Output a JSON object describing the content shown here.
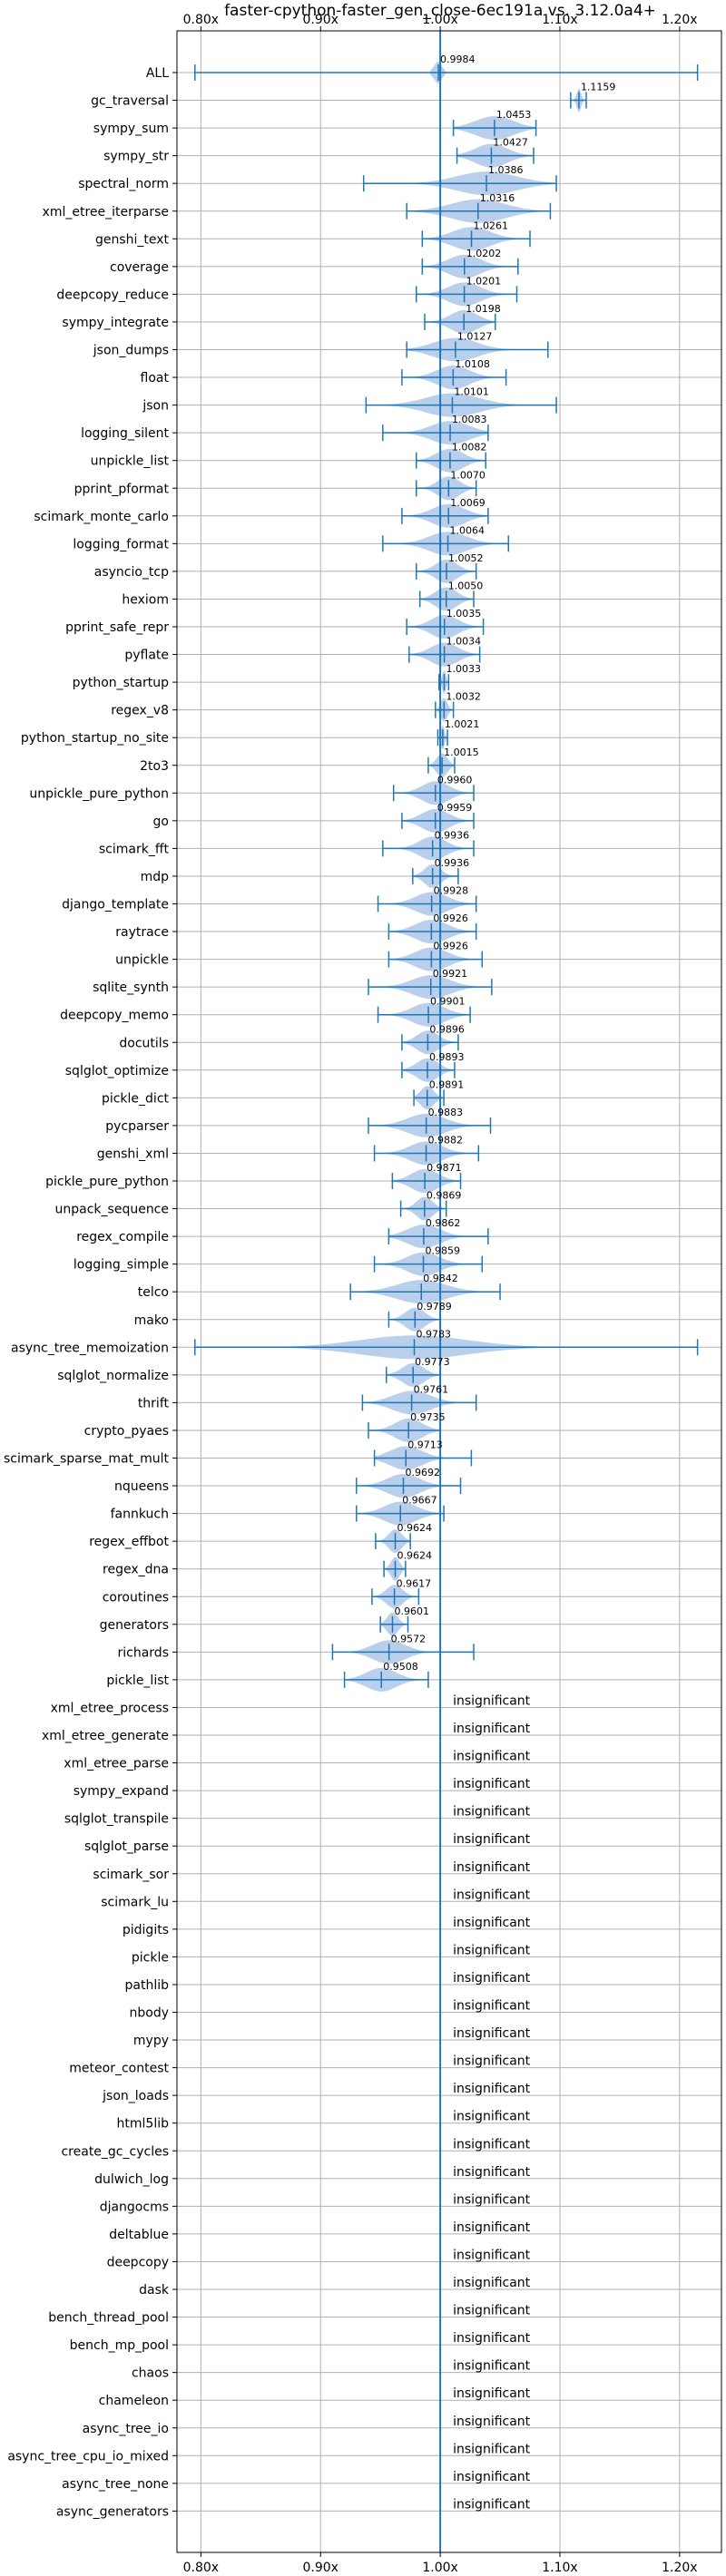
{
  "chart_data": {
    "type": "violin",
    "title": "faster-cpython-faster_gen_close-6ec191a vs. 3.12.0a4+",
    "xlabel": "",
    "ylabel": "",
    "xlim": [
      0.78,
      1.235
    ],
    "xticks": [
      0.8,
      0.9,
      1.0,
      1.1,
      1.2
    ],
    "xtick_labels": [
      "0.80x",
      "0.90x",
      "1.00x",
      "1.10x",
      "1.20x"
    ],
    "reference_line": 1.0,
    "grid": true,
    "insignificant_label": "insignificant",
    "colors": {
      "violin": "#aec7e8",
      "line": "#1f77b4",
      "grid": "#b0b0b0"
    },
    "significant": [
      {
        "name": "ALL",
        "value": 0.9984,
        "label": "0.9984",
        "min": 0.795,
        "max": 1.215,
        "spread": 0.006
      },
      {
        "name": "gc_traversal",
        "value": 1.1159,
        "label": "1.1159",
        "min": 1.109,
        "max": 1.122,
        "spread": 0.004
      },
      {
        "name": "sympy_sum",
        "value": 1.0453,
        "label": "1.0453",
        "min": 1.011,
        "max": 1.08,
        "spread": 0.035
      },
      {
        "name": "sympy_str",
        "value": 1.0427,
        "label": "1.0427",
        "min": 1.014,
        "max": 1.078,
        "spread": 0.03
      },
      {
        "name": "spectral_norm",
        "value": 1.0386,
        "label": "1.0386",
        "min": 0.936,
        "max": 1.097,
        "spread": 0.055
      },
      {
        "name": "xml_etree_iterparse",
        "value": 1.0316,
        "label": "1.0316",
        "min": 0.972,
        "max": 1.092,
        "spread": 0.05
      },
      {
        "name": "genshi_text",
        "value": 1.0261,
        "label": "1.0261",
        "min": 0.985,
        "max": 1.075,
        "spread": 0.035
      },
      {
        "name": "coverage",
        "value": 1.0202,
        "label": "1.0202",
        "min": 0.985,
        "max": 1.065,
        "spread": 0.03
      },
      {
        "name": "deepcopy_reduce",
        "value": 1.0201,
        "label": "1.0201",
        "min": 0.98,
        "max": 1.064,
        "spread": 0.03
      },
      {
        "name": "sympy_integrate",
        "value": 1.0198,
        "label": "1.0198",
        "min": 0.987,
        "max": 1.046,
        "spread": 0.025
      },
      {
        "name": "json_dumps",
        "value": 1.0127,
        "label": "1.0127",
        "min": 0.972,
        "max": 1.09,
        "spread": 0.04
      },
      {
        "name": "float",
        "value": 1.0108,
        "label": "1.0108",
        "min": 0.968,
        "max": 1.055,
        "spread": 0.03
      },
      {
        "name": "json",
        "value": 1.0101,
        "label": "1.0101",
        "min": 0.938,
        "max": 1.097,
        "spread": 0.05
      },
      {
        "name": "logging_silent",
        "value": 1.0083,
        "label": "1.0083",
        "min": 0.952,
        "max": 1.04,
        "spread": 0.035
      },
      {
        "name": "unpickle_list",
        "value": 1.0082,
        "label": "1.0082",
        "min": 0.98,
        "max": 1.038,
        "spread": 0.025
      },
      {
        "name": "pprint_pformat",
        "value": 1.007,
        "label": "1.0070",
        "min": 0.98,
        "max": 1.03,
        "spread": 0.02
      },
      {
        "name": "scimark_monte_carlo",
        "value": 1.0069,
        "label": "1.0069",
        "min": 0.968,
        "max": 1.04,
        "spread": 0.03
      },
      {
        "name": "logging_format",
        "value": 1.0064,
        "label": "1.0064",
        "min": 0.952,
        "max": 1.057,
        "spread": 0.035
      },
      {
        "name": "asyncio_tcp",
        "value": 1.0052,
        "label": "1.0052",
        "min": 0.98,
        "max": 1.03,
        "spread": 0.02
      },
      {
        "name": "hexiom",
        "value": 1.005,
        "label": "1.0050",
        "min": 0.983,
        "max": 1.028,
        "spread": 0.02
      },
      {
        "name": "pprint_safe_repr",
        "value": 1.0035,
        "label": "1.0035",
        "min": 0.972,
        "max": 1.036,
        "spread": 0.025
      },
      {
        "name": "pyflate",
        "value": 1.0034,
        "label": "1.0034",
        "min": 0.974,
        "max": 1.033,
        "spread": 0.025
      },
      {
        "name": "python_startup",
        "value": 1.0033,
        "label": "1.0033",
        "min": 0.999,
        "max": 1.007,
        "spread": 0.003
      },
      {
        "name": "regex_v8",
        "value": 1.0032,
        "label": "1.0032",
        "min": 0.996,
        "max": 1.011,
        "spread": 0.006
      },
      {
        "name": "python_startup_no_site",
        "value": 1.0021,
        "label": "1.0021",
        "min": 0.998,
        "max": 1.006,
        "spread": 0.003
      },
      {
        "name": "2to3",
        "value": 1.0015,
        "label": "1.0015",
        "min": 0.99,
        "max": 1.012,
        "spread": 0.01
      },
      {
        "name": "unpickle_pure_python",
        "value": 0.996,
        "label": "0.9960",
        "min": 0.961,
        "max": 1.028,
        "spread": 0.025
      },
      {
        "name": "go",
        "value": 0.9959,
        "label": "0.9959",
        "min": 0.968,
        "max": 1.028,
        "spread": 0.025
      },
      {
        "name": "scimark_fft",
        "value": 0.9936,
        "label": "0.9936",
        "min": 0.952,
        "max": 1.028,
        "spread": 0.025
      },
      {
        "name": "mdp",
        "value": 0.9936,
        "label": "0.9936",
        "min": 0.977,
        "max": 1.015,
        "spread": 0.015
      },
      {
        "name": "django_template",
        "value": 0.9928,
        "label": "0.9928",
        "min": 0.948,
        "max": 1.03,
        "spread": 0.03
      },
      {
        "name": "raytrace",
        "value": 0.9926,
        "label": "0.9926",
        "min": 0.957,
        "max": 1.03,
        "spread": 0.03
      },
      {
        "name": "unpickle",
        "value": 0.9926,
        "label": "0.9926",
        "min": 0.957,
        "max": 1.035,
        "spread": 0.03
      },
      {
        "name": "sqlite_synth",
        "value": 0.9921,
        "label": "0.9921",
        "min": 0.94,
        "max": 1.043,
        "spread": 0.035
      },
      {
        "name": "deepcopy_memo",
        "value": 0.9901,
        "label": "0.9901",
        "min": 0.948,
        "max": 1.025,
        "spread": 0.03
      },
      {
        "name": "docutils",
        "value": 0.9896,
        "label": "0.9896",
        "min": 0.968,
        "max": 1.015,
        "spread": 0.02
      },
      {
        "name": "sqlglot_optimize",
        "value": 0.9893,
        "label": "0.9893",
        "min": 0.968,
        "max": 1.012,
        "spread": 0.02
      },
      {
        "name": "pickle_dict",
        "value": 0.9891,
        "label": "0.9891",
        "min": 0.978,
        "max": 1.003,
        "spread": 0.012
      },
      {
        "name": "pycparser",
        "value": 0.9883,
        "label": "0.9883",
        "min": 0.94,
        "max": 1.042,
        "spread": 0.035
      },
      {
        "name": "genshi_xml",
        "value": 0.9882,
        "label": "0.9882",
        "min": 0.945,
        "max": 1.032,
        "spread": 0.03
      },
      {
        "name": "pickle_pure_python",
        "value": 0.9871,
        "label": "0.9871",
        "min": 0.96,
        "max": 1.017,
        "spread": 0.025
      },
      {
        "name": "unpack_sequence",
        "value": 0.9869,
        "label": "0.9869",
        "min": 0.967,
        "max": 1.005,
        "spread": 0.015
      },
      {
        "name": "regex_compile",
        "value": 0.9862,
        "label": "0.9862",
        "min": 0.957,
        "max": 1.04,
        "spread": 0.03
      },
      {
        "name": "logging_simple",
        "value": 0.9859,
        "label": "0.9859",
        "min": 0.945,
        "max": 1.035,
        "spread": 0.03
      },
      {
        "name": "telco",
        "value": 0.9842,
        "label": "0.9842",
        "min": 0.925,
        "max": 1.05,
        "spread": 0.045
      },
      {
        "name": "mako",
        "value": 0.9789,
        "label": "0.9789",
        "min": 0.957,
        "max": 1.0,
        "spread": 0.018
      },
      {
        "name": "async_tree_memoization",
        "value": 0.9783,
        "label": "0.9783",
        "min": 0.795,
        "max": 1.215,
        "spread": 0.1
      },
      {
        "name": "sqlglot_normalize",
        "value": 0.9773,
        "label": "0.9773",
        "min": 0.955,
        "max": 1.0,
        "spread": 0.02
      },
      {
        "name": "thrift",
        "value": 0.9761,
        "label": "0.9761",
        "min": 0.935,
        "max": 1.03,
        "spread": 0.035
      },
      {
        "name": "crypto_pyaes",
        "value": 0.9735,
        "label": "0.9735",
        "min": 0.94,
        "max": 1.0,
        "spread": 0.025
      },
      {
        "name": "scimark_sparse_mat_mult",
        "value": 0.9713,
        "label": "0.9713",
        "min": 0.945,
        "max": 1.026,
        "spread": 0.03
      },
      {
        "name": "nqueens",
        "value": 0.9692,
        "label": "0.9692",
        "min": 0.93,
        "max": 1.017,
        "spread": 0.03
      },
      {
        "name": "fannkuch",
        "value": 0.9667,
        "label": "0.9667",
        "min": 0.93,
        "max": 1.003,
        "spread": 0.03
      },
      {
        "name": "regex_effbot",
        "value": 0.9624,
        "label": "0.9624",
        "min": 0.946,
        "max": 0.975,
        "spread": 0.012
      },
      {
        "name": "regex_dna",
        "value": 0.9624,
        "label": "0.9624",
        "min": 0.953,
        "max": 0.971,
        "spread": 0.008
      },
      {
        "name": "coroutines",
        "value": 0.9617,
        "label": "0.9617",
        "min": 0.943,
        "max": 0.982,
        "spread": 0.015
      },
      {
        "name": "generators",
        "value": 0.9601,
        "label": "0.9601",
        "min": 0.95,
        "max": 0.973,
        "spread": 0.01
      },
      {
        "name": "richards",
        "value": 0.9572,
        "label": "0.9572",
        "min": 0.91,
        "max": 1.028,
        "spread": 0.03
      },
      {
        "name": "pickle_list",
        "value": 0.9508,
        "label": "0.9508",
        "min": 0.92,
        "max": 0.99,
        "spread": 0.028
      }
    ],
    "insignificant": [
      "xml_etree_process",
      "xml_etree_generate",
      "xml_etree_parse",
      "sympy_expand",
      "sqlglot_transpile",
      "sqlglot_parse",
      "scimark_sor",
      "scimark_lu",
      "pidigits",
      "pickle",
      "pathlib",
      "nbody",
      "mypy",
      "meteor_contest",
      "json_loads",
      "html5lib",
      "create_gc_cycles",
      "dulwich_log",
      "djangocms",
      "deltablue",
      "deepcopy",
      "dask",
      "bench_thread_pool",
      "bench_mp_pool",
      "chaos",
      "chameleon",
      "async_tree_io",
      "async_tree_cpu_io_mixed",
      "async_tree_none",
      "async_generators"
    ]
  }
}
